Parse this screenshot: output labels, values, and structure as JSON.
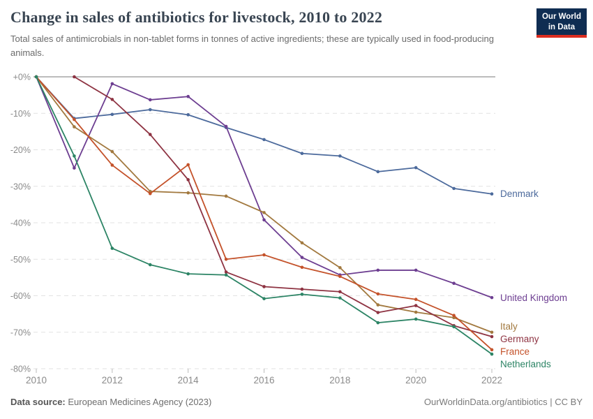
{
  "header": {
    "title": "Change in sales of antibiotics for livestock, 2010 to 2022",
    "subtitle": "Total sales of antimicrobials in non-tablet forms in tonnes of active ingredients; these are typically used in food-producing animals.",
    "logo": {
      "line1": "Our World",
      "line2": "in Data"
    }
  },
  "chart_data": {
    "type": "line",
    "title": "Change in sales of antibiotics for livestock, 2010 to 2022",
    "xlabel": "",
    "ylabel": "",
    "xlim": [
      2010,
      2022
    ],
    "ylim": [
      -80,
      0
    ],
    "grid": true,
    "legend_position": "end-of-line-labels",
    "x_ticks": [
      2010,
      2012,
      2014,
      2016,
      2018,
      2020,
      2022
    ],
    "y_ticks": [
      0,
      -10,
      -20,
      -30,
      -40,
      -50,
      -60,
      -70,
      -80
    ],
    "y_tick_labels": [
      "+0%",
      "-10%",
      "-20%",
      "-30%",
      "-40%",
      "-50%",
      "-60%",
      "-70%",
      "-80%"
    ],
    "axis_color": "#8b8b8b",
    "gridline_color": "#e2e2e2",
    "zero_line_color": "#bcbcbc",
    "series": [
      {
        "name": "Denmark",
        "color": "#4c6a9c",
        "points": [
          [
            2010,
            0
          ],
          [
            2011,
            -11.4
          ],
          [
            2012,
            -10.3
          ],
          [
            2013,
            -9.0
          ],
          [
            2014,
            -10.4
          ],
          [
            2015,
            -13.9
          ],
          [
            2016,
            -17.2
          ],
          [
            2017,
            -21.0
          ],
          [
            2018,
            -21.7
          ],
          [
            2019,
            -26.0
          ],
          [
            2020,
            -24.9
          ],
          [
            2021,
            -30.6
          ],
          [
            2022,
            -32.1
          ]
        ]
      },
      {
        "name": "United Kingdom",
        "color": "#6d3e91",
        "points": [
          [
            2010,
            0
          ],
          [
            2011,
            -25.0
          ],
          [
            2012,
            -1.9
          ],
          [
            2013,
            -6.3
          ],
          [
            2014,
            -5.4
          ],
          [
            2015,
            -13.6
          ],
          [
            2016,
            -39.2
          ],
          [
            2017,
            -49.5
          ],
          [
            2018,
            -54.3
          ],
          [
            2019,
            -53.0
          ],
          [
            2020,
            -53.0
          ],
          [
            2021,
            -56.6
          ],
          [
            2022,
            -60.5
          ]
        ]
      },
      {
        "name": "Italy",
        "color": "#a2793f",
        "points": [
          [
            2010,
            0
          ],
          [
            2011,
            -13.7
          ],
          [
            2012,
            -20.5
          ],
          [
            2013,
            -31.4
          ],
          [
            2014,
            -31.8
          ],
          [
            2015,
            -32.7
          ],
          [
            2016,
            -37.2
          ],
          [
            2017,
            -45.5
          ],
          [
            2018,
            -52.3
          ],
          [
            2019,
            -62.5
          ],
          [
            2020,
            -64.5
          ],
          [
            2021,
            -66.0
          ],
          [
            2022,
            -70.0
          ]
        ]
      },
      {
        "name": "Germany",
        "color": "#8e3342",
        "points": [
          [
            2011,
            0
          ],
          [
            2012,
            -6.2
          ],
          [
            2013,
            -15.8
          ],
          [
            2014,
            -28.2
          ],
          [
            2015,
            -53.5
          ],
          [
            2016,
            -57.5
          ],
          [
            2017,
            -58.2
          ],
          [
            2018,
            -58.9
          ],
          [
            2019,
            -64.6
          ],
          [
            2020,
            -62.7
          ],
          [
            2021,
            -68.2
          ],
          [
            2022,
            -71.2
          ]
        ]
      },
      {
        "name": "France",
        "color": "#c4522a",
        "points": [
          [
            2010,
            0
          ],
          [
            2011,
            -11.7
          ],
          [
            2012,
            -24.2
          ],
          [
            2013,
            -32.0
          ],
          [
            2014,
            -24.1
          ],
          [
            2015,
            -50.0
          ],
          [
            2016,
            -48.8
          ],
          [
            2017,
            -52.2
          ],
          [
            2018,
            -54.7
          ],
          [
            2019,
            -59.5
          ],
          [
            2020,
            -61.0
          ],
          [
            2021,
            -65.4
          ],
          [
            2022,
            -74.8
          ]
        ]
      },
      {
        "name": "Netherlands",
        "color": "#2c8465",
        "points": [
          [
            2010,
            0
          ],
          [
            2011,
            -21.7
          ],
          [
            2012,
            -47.0
          ],
          [
            2013,
            -51.5
          ],
          [
            2014,
            -54.0
          ],
          [
            2015,
            -54.3
          ],
          [
            2016,
            -60.8
          ],
          [
            2017,
            -59.6
          ],
          [
            2018,
            -60.6
          ],
          [
            2019,
            -67.4
          ],
          [
            2020,
            -66.4
          ],
          [
            2021,
            -68.5
          ],
          [
            2022,
            -76.0
          ]
        ]
      }
    ]
  },
  "footer": {
    "source_label": "Data source:",
    "source_value": "European Medicines Agency (2023)",
    "credit": "OurWorldinData.org/antibiotics | CC BY"
  }
}
